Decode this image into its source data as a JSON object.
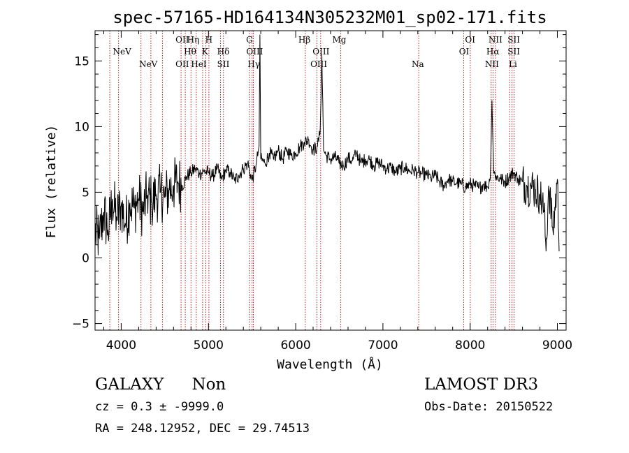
{
  "chart_data": {
    "type": "line",
    "title": "spec-57165-HD164134N305232M01_sp02-171.fits",
    "xlabel": "Wavelength (Å)",
    "ylabel": "Flux (relative)",
    "xlim": [
      3700,
      9100
    ],
    "ylim": [
      -5.5,
      17.3
    ],
    "xticks": [
      4000,
      5000,
      6000,
      7000,
      8000,
      9000
    ],
    "yticks": [
      -5,
      0,
      5,
      10,
      15
    ],
    "xtick_labels": [
      "4000",
      "5000",
      "6000",
      "7000",
      "8000",
      "9000"
    ],
    "ytick_labels": [
      "−5",
      "0",
      "5",
      "10",
      "15"
    ],
    "line_markers": [
      {
        "wavelength": 3869,
        "label": "NeV"
      },
      {
        "wavelength": 3969,
        "label": "NeV"
      },
      {
        "wavelength": 4226,
        "label": "NeV"
      },
      {
        "wavelength": 4340,
        "label": "NeV"
      },
      {
        "wavelength": 4472,
        "label": "OII"
      },
      {
        "wavelength": 4686,
        "label": "OII"
      },
      {
        "wavelength": 4734,
        "label": "Hη"
      },
      {
        "wavelength": 4800,
        "label": "Hθ"
      },
      {
        "wavelength": 4860,
        "label": "HeI"
      },
      {
        "wavelength": 4933,
        "label": "K"
      },
      {
        "wavelength": 4969,
        "label": "H"
      },
      {
        "wavelength": 5005,
        "label": "H"
      },
      {
        "wavelength": 5138,
        "label": "Hδ"
      },
      {
        "wavelength": 5172,
        "label": "SII"
      },
      {
        "wavelength": 5467,
        "label": "G"
      },
      {
        "wavelength": 5500,
        "label": "OIII"
      },
      {
        "wavelength": 5515,
        "label": "Hγ"
      },
      {
        "wavelength": 6110,
        "label": "Hβ"
      },
      {
        "wavelength": 6244,
        "label": "OIII"
      },
      {
        "wavelength": 6286,
        "label": "OIII"
      },
      {
        "wavelength": 6517,
        "label": "Mg"
      },
      {
        "wavelength": 7411,
        "label": "Na"
      },
      {
        "wavelength": 7926,
        "label": "OI"
      },
      {
        "wavelength": 8001,
        "label": "OI"
      },
      {
        "wavelength": 8241,
        "label": "NII"
      },
      {
        "wavelength": 8263,
        "label": "Hα"
      },
      {
        "wavelength": 8290,
        "label": "NII"
      },
      {
        "wavelength": 8452,
        "label": "SII"
      },
      {
        "wavelength": 8480,
        "label": "SII"
      },
      {
        "wavelength": 8505,
        "label": "Li"
      }
    ],
    "marker_labels": [
      {
        "text": "NeV",
        "wavelength": 4010,
        "row": 1
      },
      {
        "text": "NeV",
        "wavelength": 4310,
        "row": 0
      },
      {
        "text": "OII",
        "wavelength": 4700,
        "row": 2
      },
      {
        "text": "OII",
        "wavelength": 4700,
        "row": 0
      },
      {
        "text": "Hη",
        "wavelength": 4825,
        "row": 2
      },
      {
        "text": "H",
        "wavelength": 5005,
        "row": 2
      },
      {
        "text": "Hθ",
        "wavelength": 4790,
        "row": 1
      },
      {
        "text": "K",
        "wavelength": 4960,
        "row": 1
      },
      {
        "text": "Hδ",
        "wavelength": 5170,
        "row": 1
      },
      {
        "text": "HeI",
        "wavelength": 4890,
        "row": 0
      },
      {
        "text": "SII",
        "wavelength": 5170,
        "row": 0
      },
      {
        "text": "G",
        "wavelength": 5470,
        "row": 2
      },
      {
        "text": "OIII",
        "wavelength": 5530,
        "row": 1
      },
      {
        "text": "Hγ",
        "wavelength": 5520,
        "row": 0
      },
      {
        "text": "Hβ",
        "wavelength": 6100,
        "row": 2
      },
      {
        "text": "OIII",
        "wavelength": 6290,
        "row": 1
      },
      {
        "text": "OIII",
        "wavelength": 6265,
        "row": 0
      },
      {
        "text": "Mg",
        "wavelength": 6500,
        "row": 2
      },
      {
        "text": "Na",
        "wavelength": 7400,
        "row": 0
      },
      {
        "text": "OI",
        "wavelength": 8000,
        "row": 2
      },
      {
        "text": "OI",
        "wavelength": 7930,
        "row": 1
      },
      {
        "text": "NII",
        "wavelength": 8290,
        "row": 2
      },
      {
        "text": "Hα",
        "wavelength": 8260,
        "row": 1
      },
      {
        "text": "NII",
        "wavelength": 8250,
        "row": 0
      },
      {
        "text": "SII",
        "wavelength": 8500,
        "row": 2
      },
      {
        "text": "SII",
        "wavelength": 8500,
        "row": 1
      },
      {
        "text": "Li",
        "wavelength": 8490,
        "row": 0
      }
    ],
    "series": [
      {
        "name": "flux",
        "x": [
          3700,
          3750,
          3800,
          3850,
          3900,
          3950,
          4000,
          4050,
          4100,
          4150,
          4200,
          4250,
          4300,
          4350,
          4400,
          4450,
          4500,
          4550,
          4600,
          4650,
          4700,
          4750,
          4800,
          4850,
          4900,
          4950,
          5000,
          5050,
          5100,
          5150,
          5200,
          5250,
          5300,
          5350,
          5400,
          5450,
          5500,
          5550,
          5580,
          5590,
          5600,
          5650,
          5700,
          5750,
          5800,
          5850,
          5900,
          5950,
          6000,
          6050,
          6100,
          6150,
          6200,
          6250,
          6280,
          6300,
          6320,
          6350,
          6400,
          6450,
          6500,
          6550,
          6600,
          6650,
          6700,
          6750,
          6800,
          6850,
          6900,
          6950,
          7000,
          7050,
          7100,
          7150,
          7200,
          7250,
          7300,
          7350,
          7400,
          7450,
          7500,
          7550,
          7600,
          7650,
          7700,
          7750,
          7800,
          7850,
          7900,
          7950,
          8000,
          8050,
          8100,
          8150,
          8200,
          8230,
          8250,
          8270,
          8300,
          8350,
          8400,
          8450,
          8500,
          8550,
          8600,
          8650,
          8700,
          8750,
          8800,
          8850,
          8870,
          8900,
          8950,
          9000,
          9020
        ],
        "y": [
          2.0,
          1.5,
          3.5,
          2.0,
          4.5,
          3.0,
          4.0,
          2.5,
          4.2,
          3.8,
          4.5,
          3.5,
          4.8,
          4.2,
          4.8,
          5.0,
          4.6,
          5.2,
          5.5,
          5.8,
          5.5,
          6.2,
          6.5,
          6.8,
          6.4,
          6.6,
          6.5,
          6.2,
          6.8,
          6.0,
          6.7,
          6.5,
          5.9,
          6.3,
          6.8,
          7.2,
          5.9,
          7.2,
          8.5,
          17.0,
          7.5,
          7.2,
          8.0,
          7.5,
          8.2,
          7.5,
          8.2,
          7.8,
          8.0,
          8.5,
          8.8,
          9.0,
          8.2,
          8.5,
          9.5,
          15.5,
          8.2,
          7.8,
          7.5,
          7.7,
          7.2,
          7.0,
          7.6,
          7.4,
          8.0,
          7.2,
          7.5,
          7.5,
          7.0,
          7.3,
          7.0,
          6.8,
          6.9,
          6.5,
          6.8,
          6.9,
          6.6,
          6.7,
          6.5,
          6.4,
          6.3,
          6.1,
          6.3,
          5.8,
          5.5,
          6.0,
          5.8,
          5.7,
          5.6,
          5.4,
          5.6,
          5.5,
          5.3,
          5.6,
          5.4,
          6.0,
          12.0,
          6.5,
          6.2,
          6.0,
          5.8,
          6.2,
          6.5,
          6.0,
          5.8,
          5.5,
          5.5,
          5.2,
          4.8,
          3.5,
          0.5,
          5.5,
          2.0,
          6.0,
          0.5
        ]
      }
    ]
  },
  "footer": {
    "object_class": "GALAXY",
    "subclass": "Non",
    "survey": "LAMOST DR3",
    "cz_text": "cz = 0.3 ± -9999.0",
    "obs_date_text": "Obs-Date: 20150522",
    "coords_text": "RA = 248.12952, DEC =  29.74513"
  }
}
